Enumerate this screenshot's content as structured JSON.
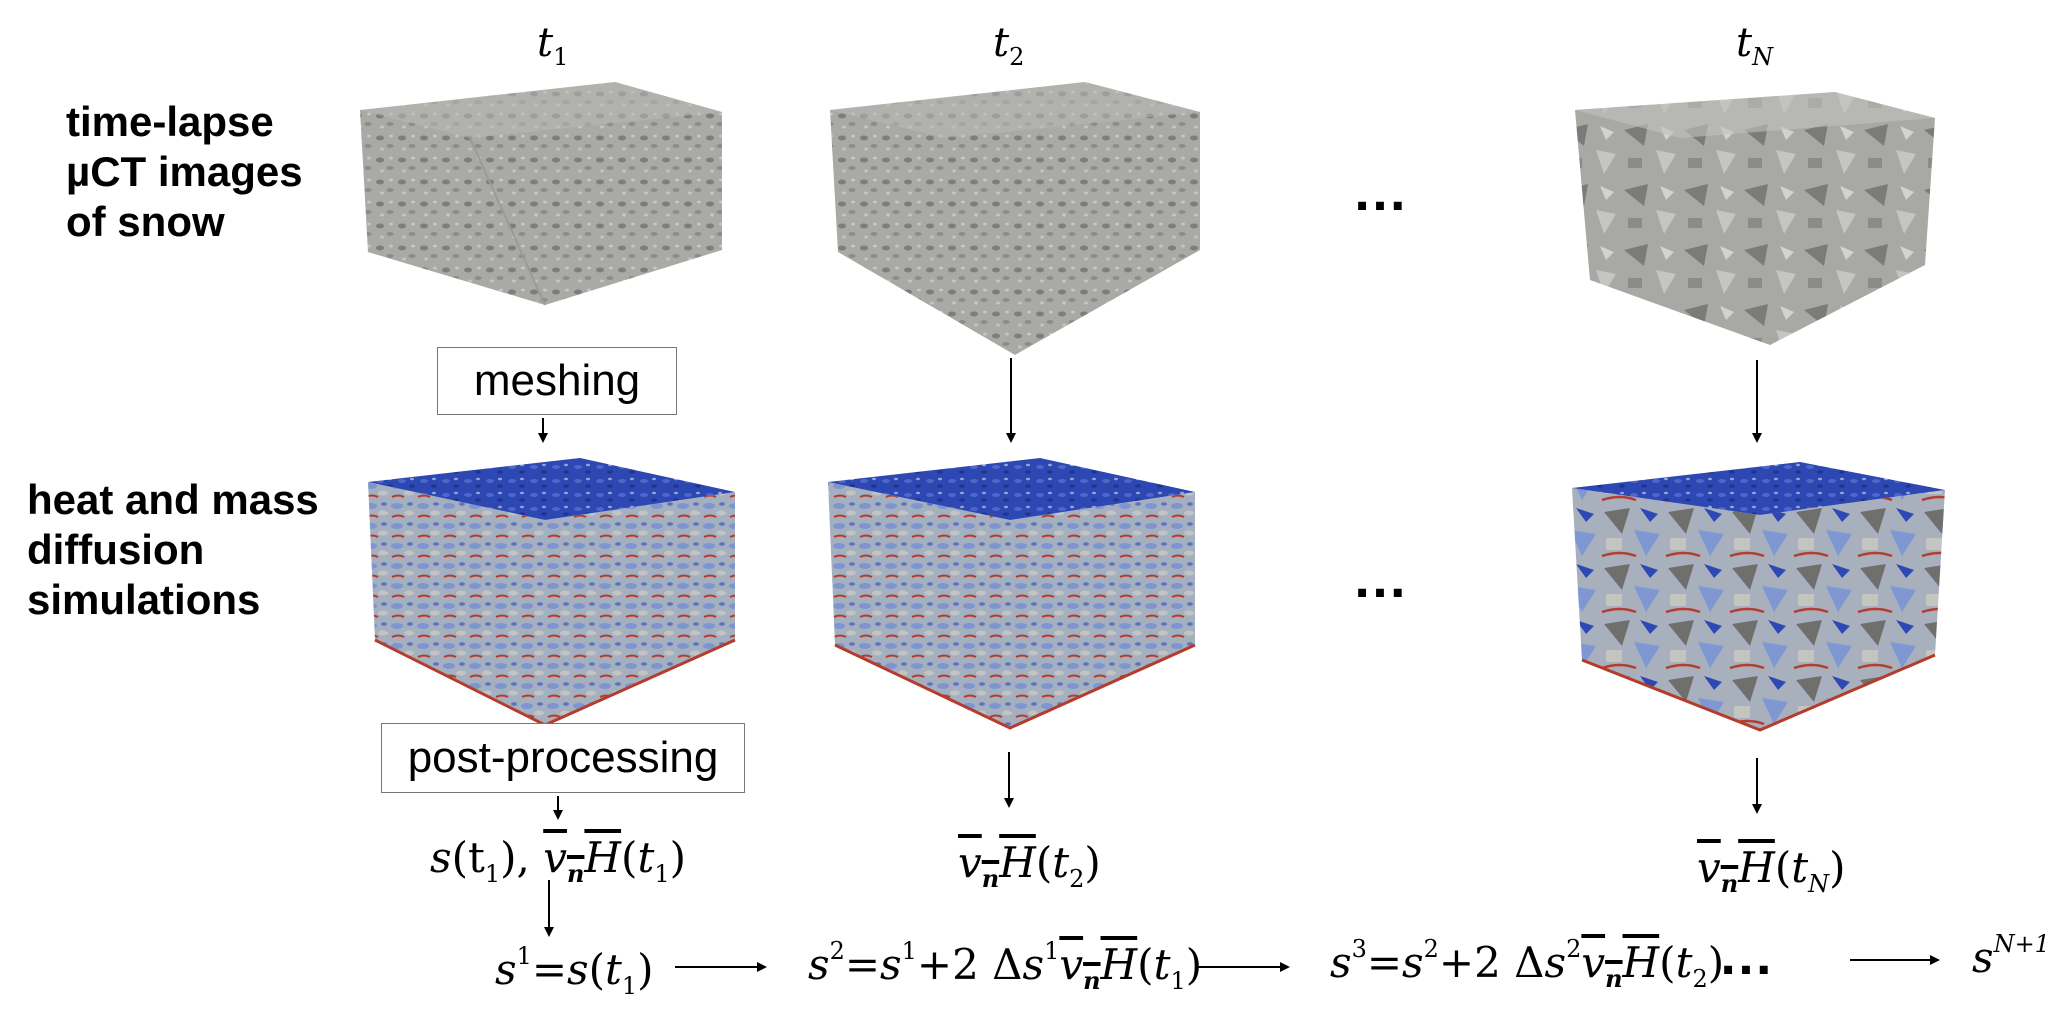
{
  "row_labels": {
    "images": [
      "time-lapse",
      "µCT images",
      "of snow"
    ],
    "simulations": [
      "heat and mass",
      "diffusion",
      "simulations"
    ]
  },
  "time_labels": [
    {
      "symbol": "t",
      "index": "1"
    },
    {
      "symbol": "t",
      "index": "2"
    },
    {
      "symbol": "t",
      "index": "N"
    }
  ],
  "process_boxes": {
    "meshing": "meshing",
    "post_processing": "post-processing"
  },
  "ellipsis": "…",
  "outputs": {
    "col1_s": "s",
    "col1_arg": "(t",
    "col1_sub": "1",
    "col1_close": "),",
    "vnh_v": "v",
    "vnh_n": "n",
    "vnh_H": "H",
    "col2_sub": "2",
    "colN_sub": "N"
  },
  "update_chain": {
    "s": "s",
    "equals": "=",
    "plus_two_delta": "+2 Δ",
    "step1_sup": "1",
    "step2_sup": "2",
    "step3_sup": "3",
    "final_sup": "N+1"
  },
  "colors": {
    "ice_gray": "#a9a9a6",
    "ice_gray_dark": "#7d7d7a",
    "flux_blue": "#2d47b3",
    "flux_light_blue": "#8fa6d8",
    "flux_red": "#b43c2c",
    "box_border": "#777777"
  }
}
